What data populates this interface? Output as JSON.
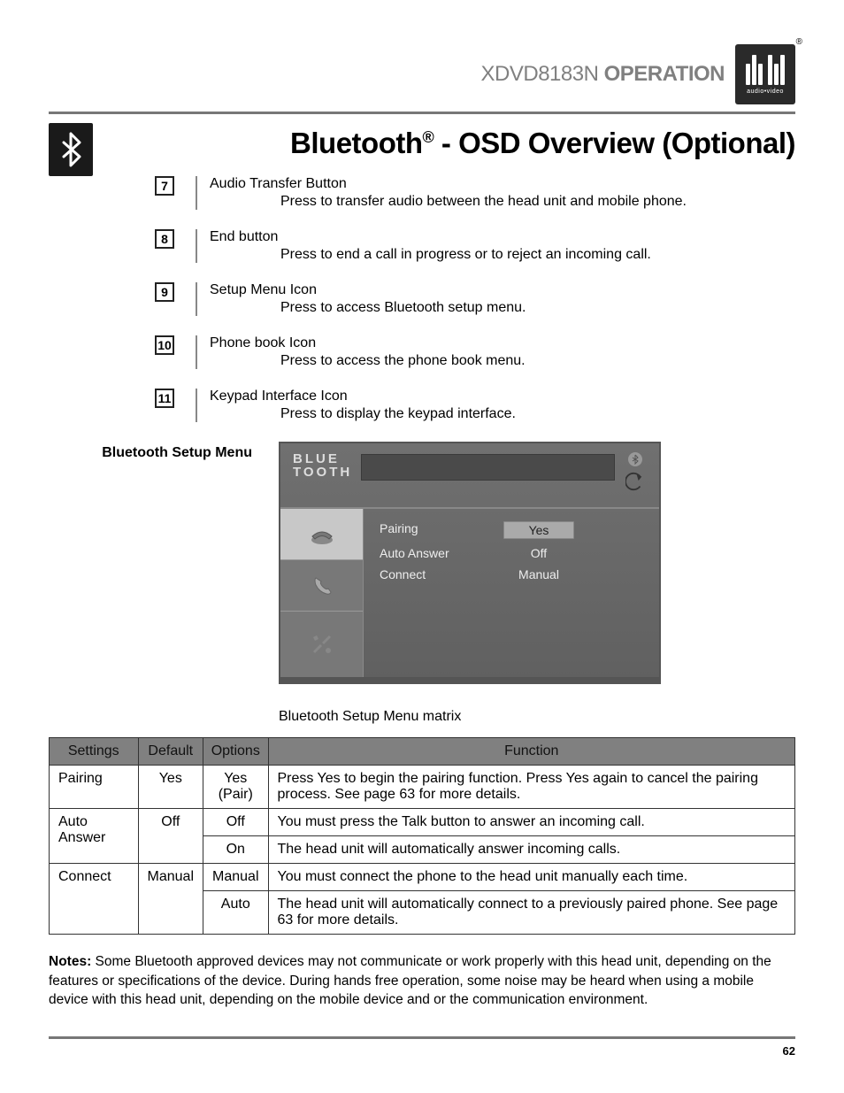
{
  "header": {
    "model": "XDVD8183N",
    "word": "OPERATION",
    "logo_sub": "audio•video",
    "reg": "®"
  },
  "main_title": {
    "pre": "Bluetooth",
    "sup": "®",
    "post": " - OSD Overview (Optional)"
  },
  "items": [
    {
      "n": "7",
      "t": "Audio Transfer Button",
      "d": "Press to transfer audio between the head unit and mobile phone."
    },
    {
      "n": "8",
      "t": "End button",
      "d": "Press to end a call in progress or to reject an incoming call."
    },
    {
      "n": "9",
      "t": "Setup Menu Icon",
      "d": "Press to access Bluetooth setup menu."
    },
    {
      "n": "10",
      "t": "Phone book Icon",
      "d": "Press to access the phone book menu."
    },
    {
      "n": "11",
      "t": "Keypad Interface Icon",
      "d": "Press to display the keypad interface."
    }
  ],
  "setup_label": "Bluetooth Setup Menu",
  "osd": {
    "logo_l1": "BLUE",
    "logo_l2": "TOOTH",
    "rows": [
      {
        "k": "Pairing",
        "v": "Yes",
        "sel": true
      },
      {
        "k": "Auto  Answer",
        "v": "Off",
        "sel": false
      },
      {
        "k": "Connect",
        "v": "Manual",
        "sel": false
      }
    ]
  },
  "matrix_caption": "Bluetooth Setup Menu matrix",
  "matrix": {
    "headers": [
      "Settings",
      "Default",
      "Options",
      "Function"
    ],
    "rows": [
      [
        "Pairing",
        "Yes",
        "Yes\n(Pair)",
        "Press Yes to begin the pairing function. Press Yes again to cancel the pairing process. See page 63 for more details.",
        1
      ],
      [
        "Auto Answer",
        "Off",
        "Off",
        "You must press the Talk button to answer an incoming call.",
        2
      ],
      [
        "",
        "",
        "On",
        "The head unit will automatically answer incoming calls.",
        0
      ],
      [
        "Connect",
        "Manual",
        "Manual",
        "You must connect the phone to the head unit manually each time.",
        2
      ],
      [
        "",
        "",
        "Auto",
        "The head unit will automatically connect to a previously paired phone. See page 63 for more details.",
        0
      ]
    ]
  },
  "notes_label": "Notes:",
  "notes": " Some Bluetooth approved devices may not communicate or work properly with this head unit, depending on the features or specifications of the device. During hands free operation, some noise may be heard when using a mobile device with this head unit, depending on the mobile device and or the communication  environment.",
  "pagenum": "62"
}
